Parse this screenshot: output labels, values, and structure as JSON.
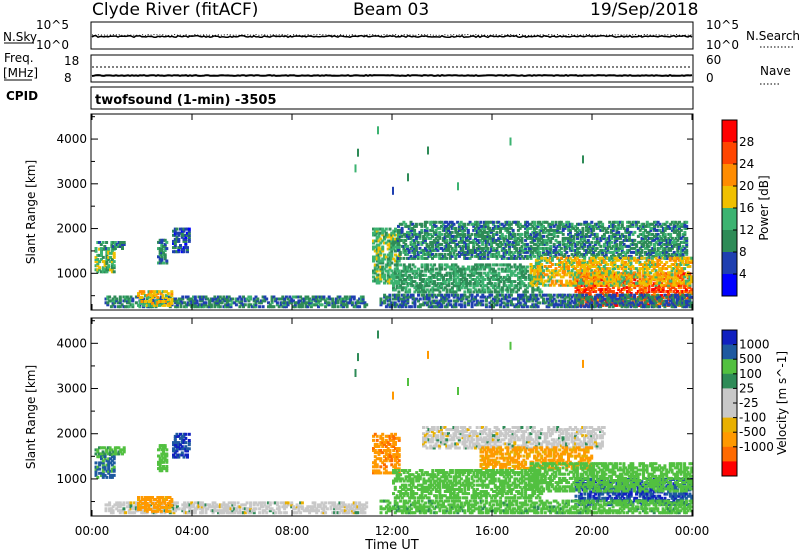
{
  "header": {
    "title": "Clyde River (fitACF)",
    "beam": "Beam 03",
    "date": "19/Sep/2018"
  },
  "top_panels": {
    "nsky_label": "N.Sky",
    "nsky_ticks": [
      "10^5",
      "10^0"
    ],
    "nsearch_label": "N.Search",
    "nsearch_ticks": [
      "10^5",
      "10^0"
    ],
    "freq_label": "Freq.",
    "freq_unit": "[MHz]",
    "freq_ticks": [
      "18",
      "8"
    ],
    "nave_label": "Nave",
    "nave_ticks": [
      "60",
      "0"
    ],
    "cpid_label": "CPID",
    "cpid_text": "twofsound (1-min) -3505"
  },
  "time_axis": {
    "ticks": [
      "00:00",
      "04:00",
      "08:00",
      "12:00",
      "16:00",
      "20:00",
      "00:00"
    ],
    "label": "Time UT"
  },
  "colors": {
    "power_scale": [
      "#0000ff",
      "#1f3fb0",
      "#2e8b57",
      "#3cb371",
      "#f0c000",
      "#ff8c00",
      "#ff4500",
      "#ff0000"
    ],
    "velocity_scale": [
      "#ff0000",
      "#ff6a00",
      "#ff9900",
      "#e8b000",
      "#c8c8c8",
      "#c8c8c8",
      "#2e8b57",
      "#52c040",
      "#1e5aa0",
      "#1020c0"
    ]
  },
  "chart_data": [
    {
      "type": "heatmap",
      "title": "",
      "ylabel": "Slant Range [km]",
      "xlabel": "",
      "x_ticks": [
        "00:00",
        "04:00",
        "08:00",
        "12:00",
        "16:00",
        "20:00",
        "00:00"
      ],
      "y_ticks": [
        "1000",
        "2000",
        "3000",
        "4000"
      ],
      "ylim": [
        180,
        4560
      ],
      "colorbar": {
        "label": "Power [dB]",
        "ticks": [
          "4",
          "8",
          "12",
          "16",
          "20",
          "24",
          "28"
        ],
        "range": [
          0,
          30
        ]
      },
      "patches": [
        {
          "t": [
            0.1,
            0.9
          ],
          "r": [
            1000,
            1550
          ],
          "v": 14
        },
        {
          "t": [
            0.1,
            1.3
          ],
          "r": [
            1520,
            1700
          ],
          "v": 9
        },
        {
          "t": [
            2.6,
            3.0
          ],
          "r": [
            1150,
            1750
          ],
          "v": 10
        },
        {
          "t": [
            3.2,
            3.9
          ],
          "r": [
            1450,
            2000
          ],
          "v": 6
        },
        {
          "t": [
            0.5,
            11.0
          ],
          "r": [
            220,
            480
          ],
          "v": 9
        },
        {
          "t": [
            1.8,
            3.2
          ],
          "r": [
            250,
            600
          ],
          "v": 18
        },
        {
          "t": [
            11.2,
            12.3
          ],
          "r": [
            750,
            2000
          ],
          "v": 14
        },
        {
          "t": [
            12.2,
            23.8
          ],
          "r": [
            1300,
            2150
          ],
          "v": 10
        },
        {
          "t": [
            12.0,
            18.0
          ],
          "r": [
            550,
            1200
          ],
          "v": 12
        },
        {
          "t": [
            19.3,
            24.0
          ],
          "r": [
            250,
            1000
          ],
          "v": 26
        },
        {
          "t": [
            17.5,
            24.0
          ],
          "r": [
            700,
            1350
          ],
          "v": 18
        },
        {
          "t": [
            11.5,
            24.0
          ],
          "r": [
            220,
            520
          ],
          "v": 8
        }
      ]
    },
    {
      "type": "heatmap",
      "title": "",
      "ylabel": "Slant Range [km]",
      "xlabel": "Time UT",
      "x_ticks": [
        "00:00",
        "04:00",
        "08:00",
        "12:00",
        "16:00",
        "20:00",
        "00:00"
      ],
      "y_ticks": [
        "1000",
        "2000",
        "3000",
        "4000"
      ],
      "ylim": [
        180,
        4560
      ],
      "colorbar": {
        "label": "Velocity [m s^-1]",
        "ticks": [
          "1000",
          "500",
          "100",
          "25",
          "-25",
          "-100",
          "-500",
          "-1000"
        ],
        "range": [
          -1000,
          1000
        ]
      },
      "patches": [
        {
          "t": [
            0.1,
            0.9
          ],
          "r": [
            1000,
            1550
          ],
          "v": 700
        },
        {
          "t": [
            0.1,
            1.3
          ],
          "r": [
            1520,
            1700
          ],
          "v": 120
        },
        {
          "t": [
            2.6,
            3.0
          ],
          "r": [
            1150,
            1750
          ],
          "v": 200
        },
        {
          "t": [
            3.2,
            3.9
          ],
          "r": [
            1450,
            2000
          ],
          "v": 900
        },
        {
          "t": [
            0.5,
            11.0
          ],
          "r": [
            220,
            480
          ],
          "v": 0
        },
        {
          "t": [
            1.8,
            3.2
          ],
          "r": [
            250,
            600
          ],
          "v": -150
        },
        {
          "t": [
            11.2,
            12.3
          ],
          "r": [
            1100,
            2000
          ],
          "v": -400
        },
        {
          "t": [
            13.2,
            20.5
          ],
          "r": [
            1650,
            2150
          ],
          "v": 0
        },
        {
          "t": [
            15.5,
            20.0
          ],
          "r": [
            1200,
            1700
          ],
          "v": -120
        },
        {
          "t": [
            12.0,
            18.0
          ],
          "r": [
            550,
            1200
          ],
          "v": 200
        },
        {
          "t": [
            19.3,
            24.0
          ],
          "r": [
            400,
            1000
          ],
          "v": 900
        },
        {
          "t": [
            17.5,
            24.0
          ],
          "r": [
            700,
            1350
          ],
          "v": 300
        },
        {
          "t": [
            11.5,
            24.0
          ],
          "r": [
            220,
            520
          ],
          "v": 150
        }
      ]
    }
  ]
}
